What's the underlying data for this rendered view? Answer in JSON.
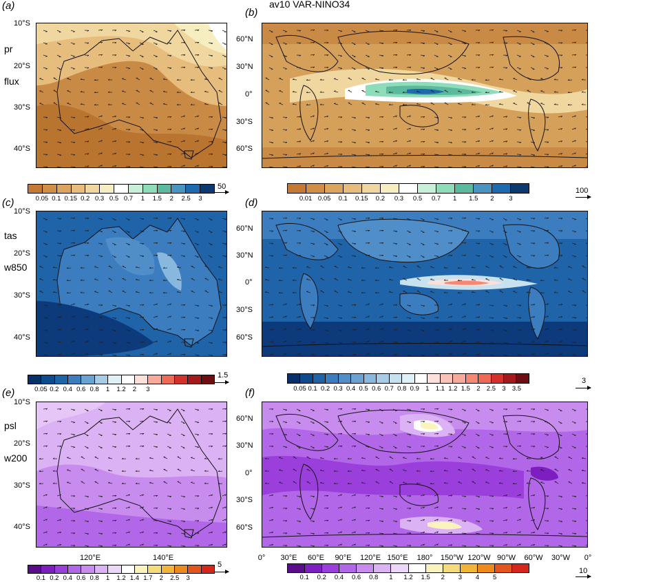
{
  "figure_title": "av10 VAR-NINO34",
  "panels": {
    "a": {
      "label": "(a)",
      "var1": "pr",
      "var2": "flux",
      "lat_ticks": [
        "10°S",
        "20°S",
        "30°S",
        "40°S"
      ]
    },
    "b": {
      "label": "(b)",
      "lat_ticks": [
        "60°N",
        "30°N",
        "0°",
        "30°S",
        "60°S"
      ]
    },
    "c": {
      "label": "(c)",
      "var1": "tas",
      "var2": "w850",
      "lat_ticks": [
        "10°S",
        "20°S",
        "30°S",
        "40°S"
      ]
    },
    "d": {
      "label": "(d)",
      "lat_ticks": [
        "60°N",
        "30°N",
        "0°",
        "30°S",
        "60°S"
      ]
    },
    "e": {
      "label": "(e)",
      "var1": "psl",
      "var2": "w200",
      "lat_ticks": [
        "10°S",
        "20°S",
        "30°S",
        "40°S"
      ],
      "lon_ticks": [
        "120°E",
        "140°E"
      ]
    },
    "f": {
      "label": "(f)",
      "lat_ticks": [
        "60°N",
        "30°N",
        "0°",
        "30°S",
        "60°S"
      ],
      "lon_ticks": [
        "0°",
        "30°E",
        "60°E",
        "90°E",
        "120°E",
        "150°E",
        "180°",
        "150°W",
        "120°W",
        "90°W",
        "60°W",
        "30°W",
        "0°"
      ]
    }
  },
  "colorbars": {
    "a": {
      "labels": [
        "0.05",
        "0.1",
        "0.15",
        "0.2",
        "0.3",
        "0.5",
        "0.7",
        "1",
        "1.5",
        "2",
        "2.5",
        "3"
      ],
      "colors": [
        "#c47a35",
        "#d08f45",
        "#dba55d",
        "#e6bd7c",
        "#f0d79f",
        "#f6edc0",
        "#ffffff",
        "#c8efd8",
        "#8fdcba",
        "#5bb99d",
        "#4a95c0",
        "#1d6ab0",
        "#0d3a6e"
      ],
      "ref_vector": "50"
    },
    "b": {
      "labels": [
        "0.01",
        "0.05",
        "0.1",
        "0.15",
        "0.2",
        "0.3",
        "0.5",
        "0.7",
        "1",
        "1.5",
        "2",
        "3"
      ],
      "colors": [
        "#c47a35",
        "#d08f45",
        "#dba55d",
        "#e6bd7c",
        "#f0d79f",
        "#f6edc0",
        "#ffffff",
        "#c8efd8",
        "#8fdcba",
        "#5bb99d",
        "#4a95c0",
        "#1d6ab0",
        "#0d3a6e"
      ],
      "ref_vector": "100"
    },
    "c": {
      "labels": [
        "0.05",
        "0.2",
        "0.4",
        "0.6",
        "0.8",
        "1",
        "1.2",
        "2",
        "3"
      ],
      "colors": [
        "#08306b",
        "#0d4a8e",
        "#1f63a8",
        "#3b7dbf",
        "#6aa3d3",
        "#a7cde6",
        "#e0f0f7",
        "#ffffff",
        "#fde0dc",
        "#f8a99a",
        "#ee6a55",
        "#d2322b",
        "#a31a1c",
        "#6f0e12"
      ],
      "ref_vector": "1.5"
    },
    "d": {
      "labels": [
        "0.05",
        "0.1",
        "0.2",
        "0.3",
        "0.4",
        "0.5",
        "0.6",
        "0.7",
        "0.8",
        "0.9",
        "1",
        "1.1",
        "1.2",
        "1.5",
        "2",
        "2.5",
        "3",
        "3.5"
      ],
      "colors": [
        "#08306b",
        "#0d4a8e",
        "#1f63a8",
        "#3b7dbf",
        "#4f8ec8",
        "#6aa3d3",
        "#88b8dd",
        "#a7cde6",
        "#c7e1ef",
        "#e0f0f7",
        "#ffffff",
        "#fde0dc",
        "#fbc3b8",
        "#f8a99a",
        "#f38873",
        "#ee6a55",
        "#d2322b",
        "#a31a1c",
        "#6f0e12"
      ],
      "ref_vector": "3"
    },
    "e": {
      "labels": [
        "0.1",
        "0.2",
        "0.4",
        "0.6",
        "0.8",
        "1",
        "1.2",
        "1.4",
        "1.7",
        "2",
        "2.5",
        "3"
      ],
      "colors": [
        "#5a0c8a",
        "#7d1ec0",
        "#9b3fdc",
        "#b266e8",
        "#c88cef",
        "#dbb2f4",
        "#ecd7f8",
        "#ffffff",
        "#fbf3bd",
        "#f5dc7a",
        "#f2b53a",
        "#ee8a1c",
        "#e5541b",
        "#d6261b"
      ],
      "ref_vector": "5"
    },
    "f": {
      "labels": [
        "0.1",
        "0.2",
        "0.4",
        "0.6",
        "0.8",
        "1",
        "1.2",
        "1.5",
        "2",
        "3",
        "4",
        "5"
      ],
      "colors": [
        "#5a0c8a",
        "#7d1ec0",
        "#9b3fdc",
        "#b266e8",
        "#c88cef",
        "#dbb2f4",
        "#ecd7f8",
        "#ffffff",
        "#fbf3bd",
        "#f5dc7a",
        "#f2b53a",
        "#ee8a1c",
        "#e5541b",
        "#d6261b"
      ],
      "ref_vector": "10"
    }
  }
}
